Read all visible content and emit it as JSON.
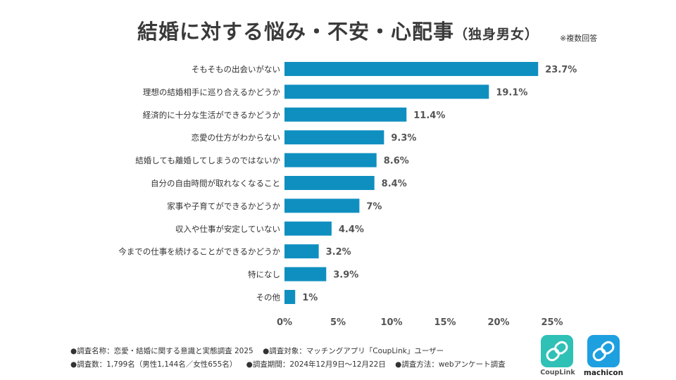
{
  "header": {
    "title": "結婚に対する悩み・不安・心配事",
    "subtitle": "（独身男女）",
    "note": "※複数回答"
  },
  "chart_data": {
    "type": "bar",
    "orientation": "horizontal",
    "title": "結婚に対する悩み・不安・心配事（独身男女）",
    "categories": [
      "そもそもの出会いがない",
      "理想の結婚相手に巡り合えるかどうか",
      "経済的に十分な生活ができるかどうか",
      "恋愛の仕方がわからない",
      "結婚しても離婚してしまうのではないか",
      "自分の自由時間が取れなくなること",
      "家事や子育てができるかどうか",
      "収入や仕事が安定していない",
      "今までの仕事を続けることができるかどうか",
      "特になし",
      "その他"
    ],
    "values": [
      23.7,
      19.1,
      11.4,
      9.3,
      8.6,
      8.4,
      7,
      4.4,
      3.2,
      3.9,
      1
    ],
    "value_labels": [
      "23.7%",
      "19.1%",
      "11.4%",
      "9.3%",
      "8.6%",
      "8.4%",
      "7%",
      "4.4%",
      "3.2%",
      "3.9%",
      "1%"
    ],
    "xlim": [
      0,
      25
    ],
    "xticks": [
      "0%",
      "5%",
      "10%",
      "15%",
      "20%",
      "25%"
    ],
    "bar_color": "#0f8fc0",
    "grid": false
  },
  "footer": {
    "line1": [
      "●調査名称：恋愛・結婚に関する意識と実態調査 2025",
      "●調査対象：マッチングアプリ「CoupLink」ユーザー"
    ],
    "line2": [
      "●調査数：1,799名（男性1,144名／女性655名）",
      "●調査期間：2024年12月9日～12月22日",
      "●調査方法：webアンケート調査"
    ]
  },
  "logos": {
    "couplink": "CoupLink",
    "machicon": "machicon"
  }
}
